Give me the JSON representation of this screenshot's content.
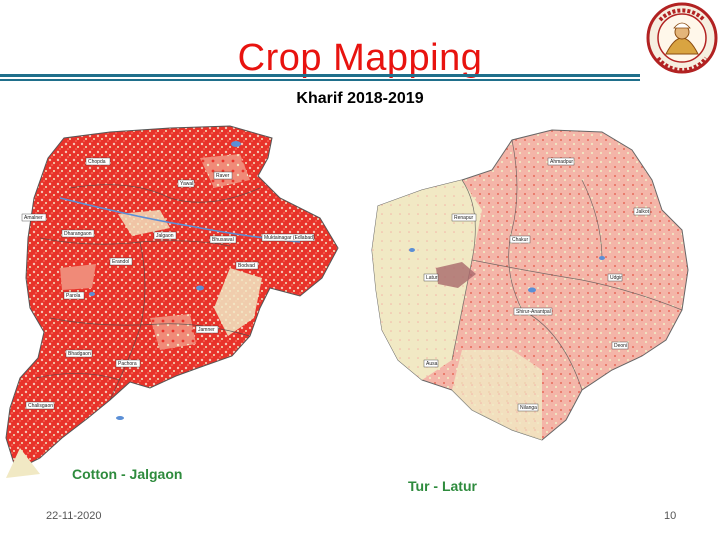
{
  "slide": {
    "title": "Crop Mapping",
    "subtitle": "Kharif 2018-2019",
    "date": "22-11-2020",
    "page_number": "10"
  },
  "maps": [
    {
      "caption": "Cotton - Jalgaon",
      "places": [
        "Chopda",
        "Raver",
        "Yawal",
        "Amalner",
        "Dharangaon",
        "Jalgaon",
        "Bhusawal",
        "Muktainagar (Edlabad)",
        "Erandol",
        "Bodvad",
        "Parola",
        "Jamner",
        "Bhadgaon",
        "Pachora",
        "Chalisgaon"
      ]
    },
    {
      "caption": "Tur - Latur",
      "places": [
        "Ahmadpur",
        "Jalkot",
        "Renapur",
        "Chakur",
        "Latur",
        "Udgir",
        "Shirur-Anantpal",
        "Deoni",
        "Ausa",
        "Nilanga"
      ]
    }
  ],
  "colors": {
    "title": "#e8130f",
    "caption": "#2e8b3d",
    "rule": "#1f6f8b",
    "crop_red": "#e8332a",
    "crop_light": "#f4b5a8",
    "background_land": "#f1e9c4",
    "water": "#5b8fd6"
  },
  "logo": {
    "icon": "university-seal-icon"
  }
}
